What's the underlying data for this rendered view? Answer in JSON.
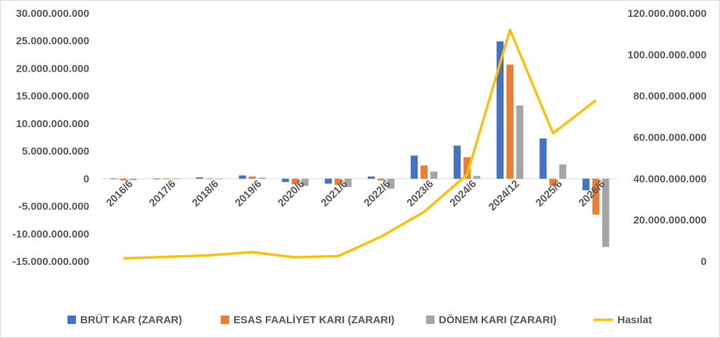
{
  "chart_data": {
    "type": "bar",
    "categories": [
      "2016/6",
      "2017/6",
      "2018/6",
      "2019/6",
      "2020/6",
      "2021/6",
      "2022/6",
      "2023/6",
      "2024/6",
      "2024/12",
      "2025/6",
      "2026/6"
    ],
    "series": [
      {
        "name": "BRÜT KAR (ZARAR)",
        "type": "bar",
        "axis": "left",
        "color": "#4472c4",
        "values": [
          50000000,
          30000000,
          250000000,
          600000000,
          -600000000,
          -900000000,
          400000000,
          4200000000,
          6000000000,
          24900000000,
          7300000000,
          -2100000000
        ]
      },
      {
        "name": "ESAS FAALİYET KARI (ZARARI)",
        "type": "bar",
        "axis": "left",
        "color": "#ed7d31",
        "values": [
          -300000000,
          20000000,
          80000000,
          400000000,
          -1000000000,
          -1100000000,
          -300000000,
          2400000000,
          3900000000,
          20700000000,
          -1300000000,
          -6500000000
        ]
      },
      {
        "name": "DÖNEM KARI (ZARARI)",
        "type": "bar",
        "axis": "left",
        "color": "#a5a5a5",
        "values": [
          -250000000,
          10000000,
          40000000,
          200000000,
          -1300000000,
          -1500000000,
          -1800000000,
          1300000000,
          500000000,
          13300000000,
          2600000000,
          -12400000000
        ]
      },
      {
        "name": "Hasılat",
        "type": "line",
        "axis": "right",
        "color": "#ffc000",
        "values": [
          1500000000,
          2200000000,
          3000000000,
          4500000000,
          2000000000,
          2600000000,
          12000000000,
          24000000000,
          42000000000,
          112000000000,
          62000000000,
          78000000000
        ]
      }
    ],
    "y_left": {
      "min": -15000000000,
      "max": 30000000000,
      "ticks": [
        30000000000,
        25000000000,
        20000000000,
        15000000000,
        10000000000,
        5000000000,
        0,
        -5000000000,
        -10000000000,
        -15000000000
      ],
      "tick_labels": [
        "30.000.000.000",
        "25.000.000.000",
        "20.000.000.000",
        "15.000.000.000",
        "10.000.000.000",
        "5.000.000.000",
        "0",
        "-5.000.000.000",
        "-10.000.000.000",
        "-15.000.000.000"
      ]
    },
    "y_right": {
      "min": 0,
      "max": 120000000000,
      "ticks": [
        120000000000,
        100000000000,
        80000000000,
        60000000000,
        40000000000,
        20000000000,
        0
      ],
      "tick_labels": [
        "120.000.000.000",
        "100.000.000.000",
        "80.000.000.000",
        "60.000.000.000",
        "40.000.000.000",
        "20.000.000.000",
        "0"
      ]
    },
    "title": "",
    "xlabel": "",
    "ylabel": "",
    "grid": false,
    "legend_position": "bottom"
  }
}
